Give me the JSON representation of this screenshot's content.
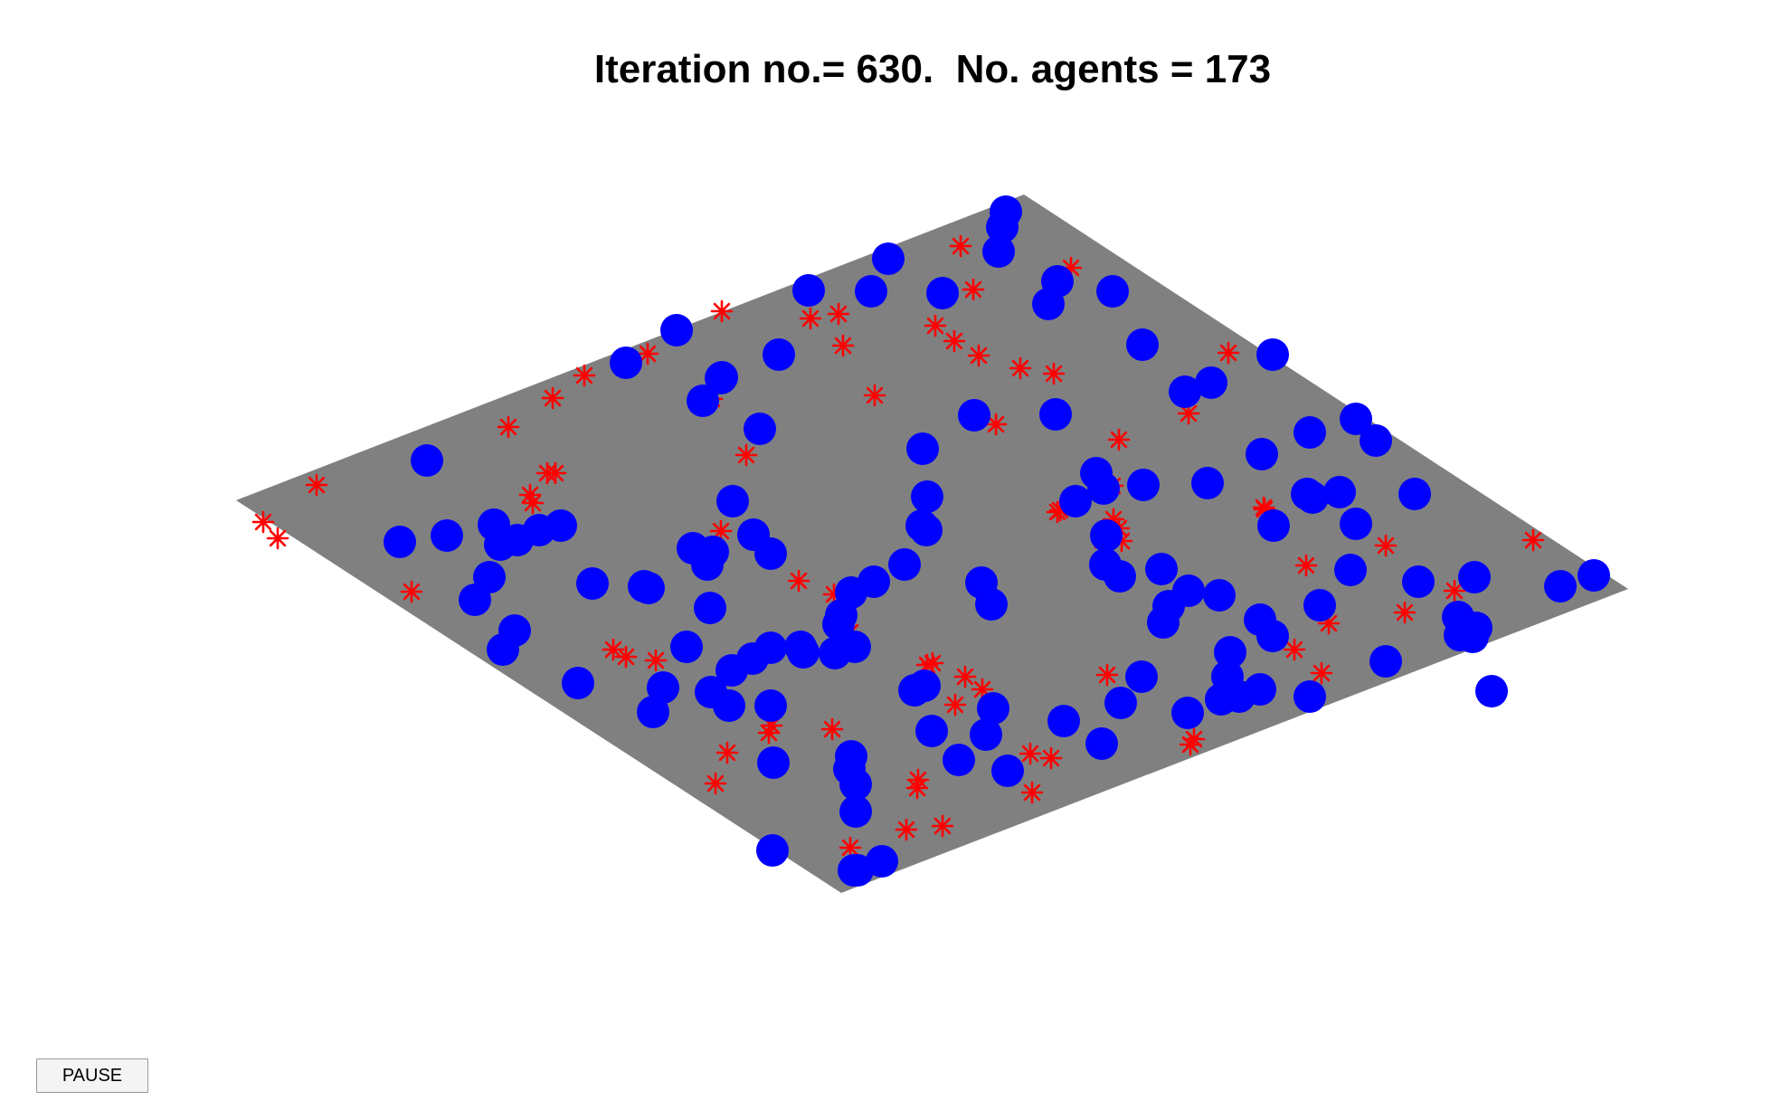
{
  "window": {
    "title": "Iteration no.= 630.  No. agents = 173"
  },
  "controls": {
    "pause_label": "PAUSE"
  },
  "colors": {
    "background": "#ffffff",
    "surface": "#808080",
    "agent_circle": "#0000ff",
    "agent_star": "#ff0000"
  },
  "simulation": {
    "iteration": 630,
    "agent_count": 173
  }
}
